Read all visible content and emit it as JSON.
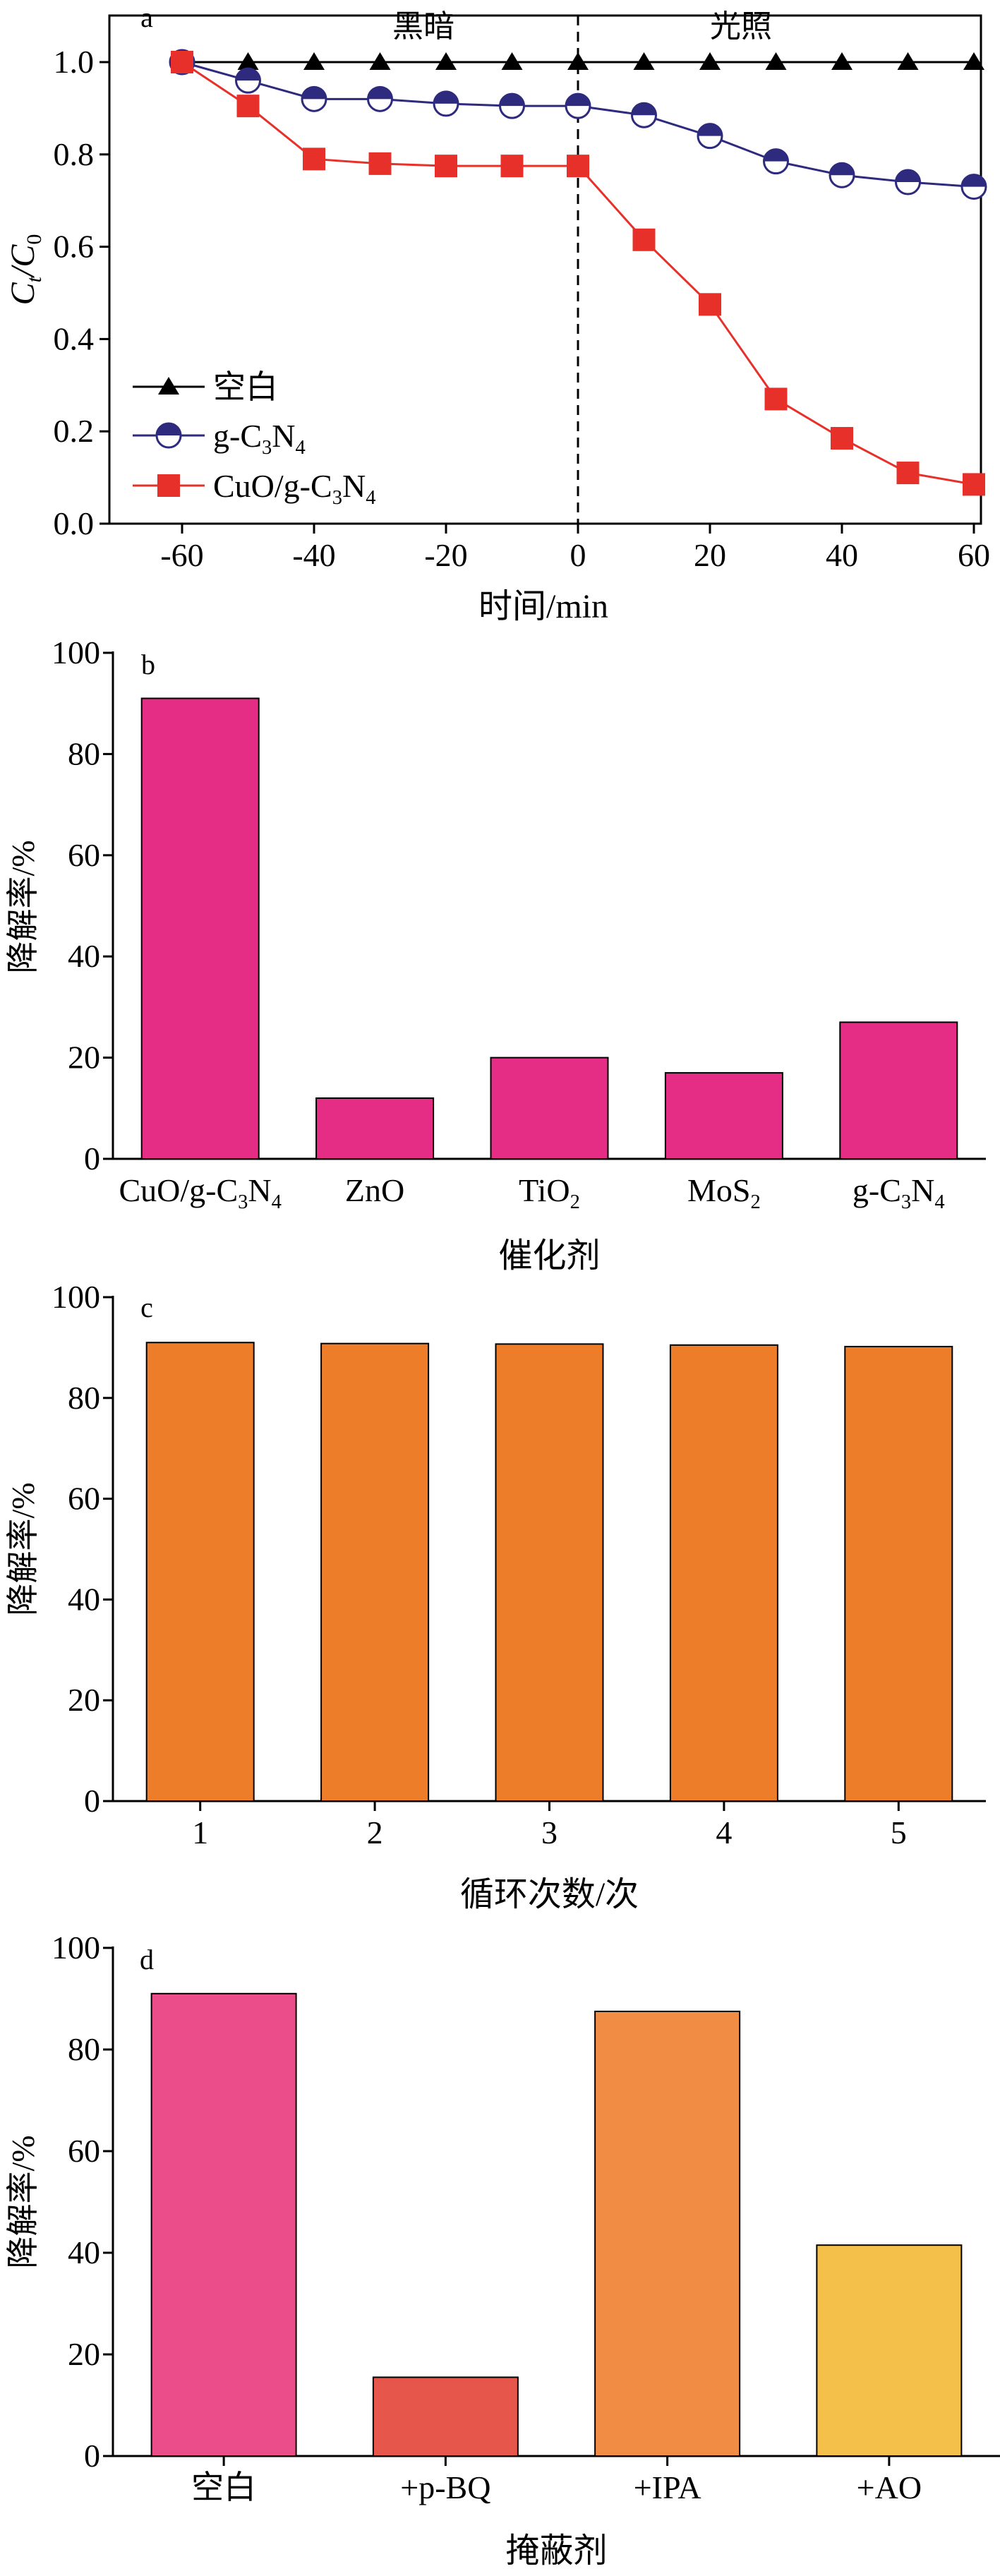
{
  "chart_data": [
    {
      "type": "line",
      "panel_label": "a",
      "xlabel": "时间/min",
      "ylabel_main": "C",
      "ylabel_sub1": "t",
      "ylabel_mid": "/C",
      "ylabel_sub2": "0",
      "xlim": [
        -68,
        60
      ],
      "ylim": [
        0,
        1.05
      ],
      "xticks": [
        -60,
        -40,
        -20,
        0,
        20,
        40,
        60
      ],
      "yticks": [
        0.0,
        0.2,
        0.4,
        0.6,
        0.8,
        1.0
      ],
      "ytick_labels": [
        "0.0",
        "0.2",
        "0.4",
        "0.6",
        "0.8",
        "1.0"
      ],
      "divider_x": 0,
      "region_labels": [
        "黑暗",
        "光照"
      ],
      "x": [
        -60,
        -50,
        -40,
        -30,
        -20,
        -10,
        0,
        10,
        20,
        30,
        40,
        50,
        60
      ],
      "series": [
        {
          "name": "空白",
          "color": "#000000",
          "marker": "triangle",
          "values": [
            1.0,
            1.0,
            1.0,
            1.0,
            1.0,
            1.0,
            1.0,
            1.0,
            1.0,
            1.0,
            1.0,
            1.0,
            1.0
          ]
        },
        {
          "name_parts": [
            "g-C",
            "3",
            "N",
            "4"
          ],
          "color": "#2e2a7e",
          "marker": "half-circle",
          "values": [
            1.0,
            0.96,
            0.92,
            0.92,
            0.91,
            0.905,
            0.905,
            0.885,
            0.84,
            0.785,
            0.755,
            0.74,
            0.73
          ]
        },
        {
          "name_parts": [
            "CuO/g-C",
            "3",
            "N",
            "4"
          ],
          "color": "#e8302a",
          "marker": "square",
          "values": [
            1.0,
            0.905,
            0.79,
            0.78,
            0.775,
            0.775,
            0.775,
            0.615,
            0.475,
            0.27,
            0.185,
            0.11,
            0.085
          ]
        }
      ]
    },
    {
      "type": "bar",
      "panel_label": "b",
      "xlabel": "催化剂",
      "ylabel": "降解率/%",
      "ylim": [
        0,
        100
      ],
      "yticks": [
        0,
        20,
        40,
        60,
        80,
        100
      ],
      "bar_color": "#e52d86",
      "category_parts": [
        [
          "CuO/g-C",
          "3",
          "N",
          "4"
        ],
        [
          "ZnO"
        ],
        [
          "TiO",
          "2"
        ],
        [
          "MoS",
          "2"
        ],
        [
          "g-C",
          "3",
          "N",
          "4"
        ]
      ],
      "values": [
        91,
        12,
        20,
        17,
        27
      ]
    },
    {
      "type": "bar",
      "panel_label": "c",
      "xlabel": "循环次数/次",
      "ylabel": "降解率/%",
      "ylim": [
        0,
        100
      ],
      "yticks": [
        0,
        20,
        40,
        60,
        80,
        100
      ],
      "bar_color": "#ee7d2a",
      "categories": [
        "1",
        "2",
        "3",
        "4",
        "5"
      ],
      "values": [
        91,
        90.8,
        90.7,
        90.5,
        90.2
      ]
    },
    {
      "type": "bar",
      "panel_label": "d",
      "xlabel": "掩蔽剂",
      "ylabel": "降解率/%",
      "ylim": [
        0,
        100
      ],
      "yticks": [
        0,
        20,
        40,
        60,
        80,
        100
      ],
      "categories": [
        "空白",
        "+p-BQ",
        "+IPA",
        "+AO"
      ],
      "bar_colors": [
        "#ea4d8a",
        "#e6564b",
        "#f08c44",
        "#f5c04a"
      ],
      "values": [
        91,
        15.5,
        87.5,
        41.5
      ]
    }
  ]
}
